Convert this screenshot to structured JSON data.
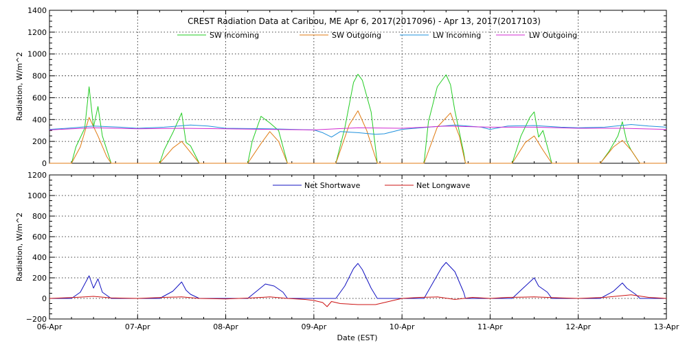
{
  "title": "CREST Radiation Data at Caribou, ME   Apr  6, 2017(2017096) - Apr 13, 2017(2017103)",
  "colors": {
    "sw_incoming": "#22cc22",
    "sw_outgoing": "#e07a10",
    "lw_incoming": "#1e90dd",
    "lw_outgoing": "#d028d0",
    "net_shortwave": "#1010c0",
    "net_longwave": "#cc1010"
  },
  "chart_data": [
    {
      "type": "line",
      "title": "CREST Radiation Data at Caribou, ME   Apr  6, 2017(2017096) - Apr 13, 2017(2017103)",
      "ylabel": "Radiation, W/m^2",
      "xlabel": "",
      "ylim": [
        0,
        1400
      ],
      "yticks": [
        "0",
        "200",
        "400",
        "600",
        "800",
        "1000",
        "1200",
        "1400"
      ],
      "xlim_days": [
        6,
        13
      ],
      "grid": true,
      "legend": "top, single row",
      "series": [
        {
          "name": "SW Incoming",
          "key": "sw_incoming",
          "daily_peaks": [
            700,
            460,
            430,
            815,
            810,
            470,
            380
          ],
          "x": [
            6.0,
            6.25,
            6.3,
            6.4,
            6.45,
            6.5,
            6.55,
            6.6,
            6.7,
            7.25,
            7.3,
            7.4,
            7.5,
            7.55,
            7.6,
            7.7,
            8.25,
            8.3,
            8.4,
            8.5,
            8.6,
            8.7,
            9.25,
            9.35,
            9.45,
            9.5,
            9.55,
            9.65,
            9.72,
            10.25,
            10.3,
            10.4,
            10.5,
            10.55,
            10.6,
            10.7,
            10.72,
            11.25,
            11.35,
            11.45,
            11.5,
            11.55,
            11.6,
            11.7,
            12.25,
            12.35,
            12.45,
            12.5,
            12.55,
            12.6,
            12.7,
            13.0
          ],
          "y": [
            0,
            0,
            150,
            320,
            700,
            330,
            520,
            250,
            0,
            0,
            120,
            280,
            460,
            190,
            160,
            0,
            0,
            200,
            430,
            370,
            300,
            0,
            0,
            320,
            740,
            815,
            760,
            470,
            0,
            0,
            380,
            700,
            810,
            720,
            480,
            100,
            0,
            0,
            250,
            420,
            470,
            240,
            300,
            0,
            0,
            110,
            250,
            380,
            200,
            120,
            0,
            0
          ]
        },
        {
          "name": "SW Outgoing",
          "key": "sw_outgoing",
          "x": [
            6.0,
            6.25,
            6.35,
            6.45,
            6.55,
            6.65,
            6.7,
            7.25,
            7.4,
            7.5,
            7.6,
            7.7,
            8.25,
            8.4,
            8.5,
            8.6,
            8.7,
            9.25,
            9.4,
            9.5,
            9.6,
            9.72,
            10.25,
            10.4,
            10.55,
            10.65,
            10.72,
            11.25,
            11.4,
            11.5,
            11.6,
            11.7,
            12.25,
            12.4,
            12.5,
            12.6,
            12.7,
            13.0
          ],
          "y": [
            0,
            0,
            150,
            420,
            250,
            60,
            0,
            0,
            140,
            200,
            100,
            0,
            0,
            180,
            290,
            200,
            0,
            0,
            350,
            480,
            300,
            0,
            0,
            330,
            460,
            250,
            0,
            0,
            190,
            250,
            120,
            0,
            0,
            150,
            210,
            120,
            0,
            0
          ]
        },
        {
          "name": "LW Incoming",
          "key": "lw_incoming",
          "x": [
            6.0,
            6.2,
            6.5,
            6.8,
            7.0,
            7.3,
            7.6,
            7.8,
            8.0,
            8.5,
            9.0,
            9.1,
            9.2,
            9.3,
            9.5,
            9.7,
            9.8,
            10.0,
            10.3,
            10.6,
            10.9,
            11.0,
            11.2,
            11.5,
            11.8,
            12.0,
            12.3,
            12.6,
            12.8,
            13.0
          ],
          "y": [
            310,
            320,
            340,
            330,
            320,
            330,
            350,
            340,
            320,
            315,
            305,
            280,
            240,
            290,
            280,
            265,
            270,
            310,
            330,
            350,
            330,
            310,
            340,
            345,
            330,
            325,
            330,
            355,
            340,
            330
          ]
        },
        {
          "name": "LW Outgoing",
          "key": "lw_outgoing",
          "x": [
            6.0,
            6.5,
            7.0,
            7.5,
            8.0,
            8.5,
            9.0,
            9.5,
            10.0,
            10.5,
            11.0,
            11.5,
            12.0,
            12.5,
            13.0
          ],
          "y": [
            305,
            325,
            315,
            320,
            315,
            310,
            305,
            325,
            320,
            340,
            330,
            330,
            320,
            320,
            310
          ]
        }
      ]
    },
    {
      "type": "line",
      "title": "",
      "ylabel": "Radiation, W/m^2",
      "xlabel": "Date (EST)",
      "ylim": [
        -200,
        1200
      ],
      "yticks": [
        "−200",
        "0",
        "200",
        "400",
        "600",
        "800",
        "1000",
        "1200"
      ],
      "xticks": [
        "06-Apr",
        "07-Apr",
        "08-Apr",
        "09-Apr",
        "10-Apr",
        "11-Apr",
        "12-Apr",
        "13-Apr"
      ],
      "xlim_days": [
        6,
        13
      ],
      "grid": true,
      "legend": "top, single row",
      "series": [
        {
          "name": "Net Shortwave",
          "key": "net_shortwave",
          "x": [
            6.0,
            6.25,
            6.35,
            6.45,
            6.5,
            6.55,
            6.6,
            6.7,
            7.25,
            7.4,
            7.5,
            7.55,
            7.6,
            7.7,
            8.25,
            8.35,
            8.45,
            8.55,
            8.65,
            8.7,
            9.25,
            9.35,
            9.45,
            9.5,
            9.55,
            9.65,
            9.72,
            10.25,
            10.35,
            10.45,
            10.5,
            10.6,
            10.7,
            10.72,
            11.25,
            11.35,
            11.5,
            11.55,
            11.65,
            11.7,
            12.25,
            12.4,
            12.5,
            12.55,
            12.65,
            12.7,
            13.0
          ],
          "y": [
            0,
            0,
            60,
            220,
            100,
            190,
            60,
            0,
            0,
            70,
            160,
            80,
            40,
            0,
            0,
            70,
            140,
            120,
            60,
            0,
            0,
            120,
            290,
            340,
            280,
            100,
            0,
            0,
            150,
            300,
            350,
            260,
            60,
            0,
            0,
            80,
            200,
            120,
            60,
            0,
            0,
            70,
            150,
            100,
            40,
            0,
            0
          ]
        },
        {
          "name": "Net Longwave",
          "key": "net_longwave",
          "x": [
            6.0,
            6.3,
            6.5,
            6.7,
            7.0,
            7.3,
            7.5,
            7.7,
            8.0,
            8.3,
            8.5,
            8.7,
            8.9,
            9.0,
            9.1,
            9.15,
            9.2,
            9.3,
            9.5,
            9.7,
            9.8,
            10.0,
            10.2,
            10.4,
            10.6,
            10.8,
            11.0,
            11.2,
            11.5,
            11.8,
            12.0,
            12.3,
            12.6,
            12.8,
            13.0
          ],
          "y": [
            0,
            10,
            20,
            5,
            0,
            10,
            15,
            0,
            -5,
            5,
            15,
            0,
            -10,
            -20,
            -40,
            -80,
            -30,
            -50,
            -60,
            -60,
            -40,
            0,
            10,
            15,
            -10,
            10,
            0,
            10,
            15,
            5,
            0,
            10,
            35,
            10,
            0
          ]
        }
      ]
    }
  ]
}
